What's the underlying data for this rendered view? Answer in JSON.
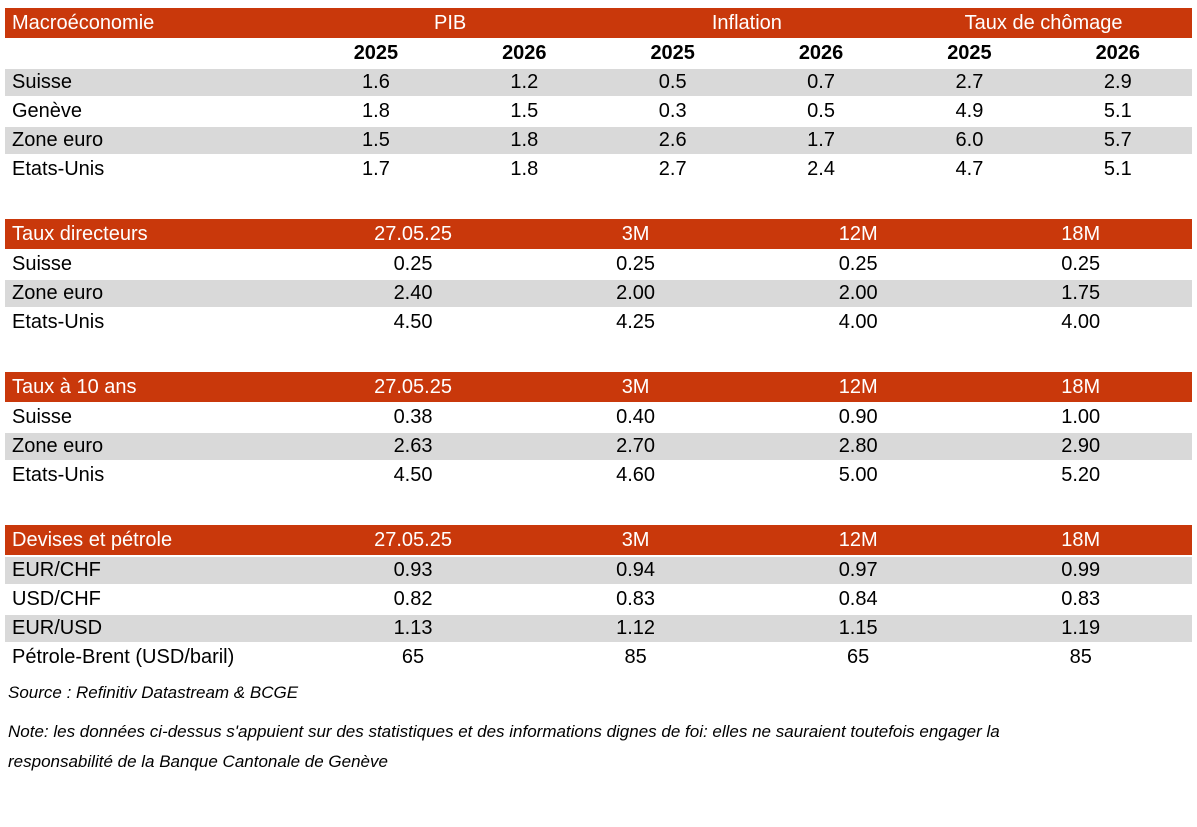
{
  "colors": {
    "header_bg": "#C9380B",
    "header_text": "#FFFFFF",
    "alt_row_bg": "#D9D9D9",
    "row_bg": "#FFFFFF",
    "body_text": "#000000"
  },
  "macro": {
    "title": "Macroéconomie",
    "groups": [
      "PIB",
      "Inflation",
      "Taux de chômage"
    ],
    "years": [
      "2025",
      "2026",
      "2025",
      "2026",
      "2025",
      "2026"
    ],
    "rows": [
      {
        "label": "Suisse",
        "values": [
          "1.6",
          "1.2",
          "0.5",
          "0.7",
          "2.7",
          "2.9"
        ]
      },
      {
        "label": "Genève",
        "values": [
          "1.8",
          "1.5",
          "0.3",
          "0.5",
          "4.9",
          "5.1"
        ]
      },
      {
        "label": "Zone euro",
        "values": [
          "1.5",
          "1.8",
          "2.6",
          "1.7",
          "6.0",
          "5.7"
        ]
      },
      {
        "label": "Etats-Unis",
        "values": [
          "1.7",
          "1.8",
          "2.7",
          "2.4",
          "4.7",
          "5.1"
        ]
      }
    ]
  },
  "taux_directeurs": {
    "title": "Taux directeurs",
    "columns": [
      "27.05.25",
      "3M",
      "12M",
      "18M"
    ],
    "rows": [
      {
        "label": "Suisse",
        "values": [
          "0.25",
          "0.25",
          "0.25",
          "0.25"
        ]
      },
      {
        "label": "Zone euro",
        "values": [
          "2.40",
          "2.00",
          "2.00",
          "1.75"
        ]
      },
      {
        "label": "Etats-Unis",
        "values": [
          "4.50",
          "4.25",
          "4.00",
          "4.00"
        ]
      }
    ]
  },
  "taux_10_ans": {
    "title": "Taux à 10 ans",
    "columns": [
      "27.05.25",
      "3M",
      "12M",
      "18M"
    ],
    "rows": [
      {
        "label": "Suisse",
        "values": [
          "0.38",
          "0.40",
          "0.90",
          "1.00"
        ]
      },
      {
        "label": "Zone euro",
        "values": [
          "2.63",
          "2.70",
          "2.80",
          "2.90"
        ]
      },
      {
        "label": "Etats-Unis",
        "values": [
          "4.50",
          "4.60",
          "5.00",
          "5.20"
        ]
      }
    ]
  },
  "devises": {
    "title": "Devises et pétrole",
    "columns": [
      "27.05.25",
      "3M",
      "12M",
      "18M"
    ],
    "rows": [
      {
        "label": "EUR/CHF",
        "values": [
          "0.93",
          "0.94",
          "0.97",
          "0.99"
        ]
      },
      {
        "label": "USD/CHF",
        "values": [
          "0.82",
          "0.83",
          "0.84",
          "0.83"
        ]
      },
      {
        "label": "EUR/USD",
        "values": [
          "1.13",
          "1.12",
          "1.15",
          "1.19"
        ]
      },
      {
        "label": "Pétrole-Brent (USD/baril)",
        "values": [
          "65",
          "85",
          "65",
          "85"
        ]
      }
    ]
  },
  "footer": {
    "source": "Source : Refinitiv Datastream & BCGE",
    "note": "Note: les données ci-dessus s'appuient sur des statistiques et des informations dignes de foi: elles ne sauraient toutefois engager la responsabilité de la Banque Cantonale de Genève"
  }
}
